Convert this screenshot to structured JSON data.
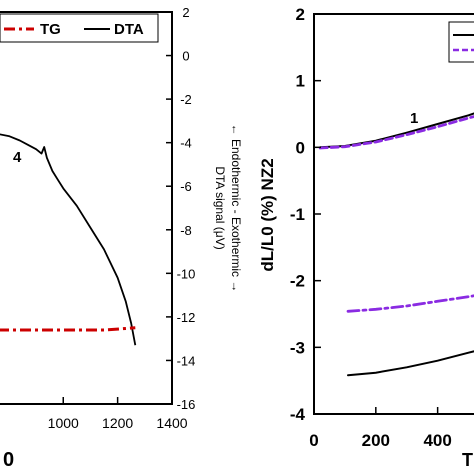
{
  "chart_data": [
    {
      "type": "line",
      "legend": {
        "placement": "top-right",
        "items": [
          "TG",
          "DTA"
        ]
      },
      "xaxis": {
        "range": [
          760,
          1400
        ],
        "ticks": [
          "1000",
          "1200",
          "1400"
        ],
        "partial_label": "0"
      },
      "right_axis": {
        "range": [
          -16,
          2
        ],
        "ticks": [
          "2",
          "0",
          "-2",
          "-4",
          "-6",
          "-8",
          "-10",
          "-12",
          "-14",
          "-16"
        ],
        "label": "DTA signal (μV)",
        "label2": "← Endothermic - Exothermic →"
      },
      "annotation": "4",
      "series": [
        {
          "name": "DTA",
          "color": "#000000",
          "style": "solid",
          "x": [
            760,
            800,
            840,
            870,
            900,
            920,
            930,
            940,
            960,
            980,
            1000,
            1050,
            1100,
            1150,
            1200,
            1230,
            1250,
            1265
          ],
          "y": [
            -3.6,
            -3.7,
            -3.9,
            -4.1,
            -4.3,
            -4.5,
            -4.2,
            -4.7,
            -5.3,
            -5.7,
            -6.1,
            -6.9,
            -7.9,
            -8.9,
            -10.2,
            -11.3,
            -12.3,
            -13.3
          ]
        },
        {
          "name": "TG",
          "color": "#cc0000",
          "style": "dash-dot",
          "x": [
            760,
            850,
            950,
            1050,
            1150,
            1265
          ],
          "y": [
            -12.6,
            -12.6,
            -12.6,
            -12.6,
            -12.6,
            -12.5
          ]
        }
      ]
    },
    {
      "type": "line",
      "xaxis": {
        "range": [
          0,
          550
        ],
        "ticks": [
          "0",
          "200",
          "400"
        ],
        "partial_label": "T"
      },
      "yaxis": {
        "range": [
          -4,
          2
        ],
        "ticks": [
          "2",
          "1",
          "0",
          "-1",
          "-2",
          "-3",
          "-4"
        ],
        "label": "dL/L0 (%) NZ2"
      },
      "annotation": "1",
      "series": [
        {
          "color": "#000000",
          "style": "solid",
          "x": [
            20,
            100,
            200,
            300,
            400,
            500,
            550
          ],
          "y": [
            0.0,
            0.02,
            0.1,
            0.22,
            0.35,
            0.48,
            0.56
          ]
        },
        {
          "color": "#8a2be2",
          "style": "dashed",
          "x": [
            20,
            100,
            200,
            300,
            400,
            500,
            550
          ],
          "y": [
            -0.01,
            0.01,
            0.08,
            0.19,
            0.31,
            0.44,
            0.5
          ]
        },
        {
          "color": "#8a2be2",
          "style": "dash-dot",
          "x": [
            110,
            200,
            300,
            400,
            500,
            550
          ],
          "y": [
            -2.46,
            -2.43,
            -2.38,
            -2.31,
            -2.24,
            -2.2
          ]
        },
        {
          "color": "#000000",
          "style": "solid",
          "x": [
            110,
            200,
            300,
            400,
            500,
            550
          ],
          "y": [
            -3.42,
            -3.38,
            -3.3,
            -3.2,
            -3.08,
            -3.02
          ]
        }
      ]
    }
  ]
}
